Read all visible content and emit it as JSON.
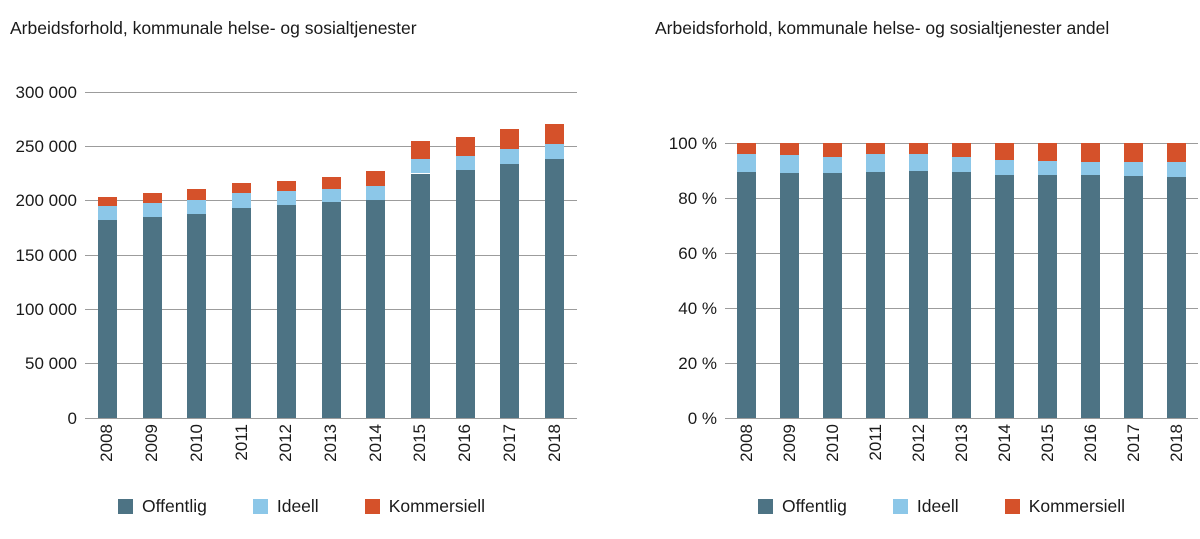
{
  "colors": {
    "background": "#ffffff",
    "text": "#1a1a1a",
    "gridline": "#9c9c9c",
    "offentlig": "#4d7384",
    "ideell": "#8cc7e8",
    "kommersiell": "#d5512a"
  },
  "chart_data": [
    {
      "type": "bar",
      "stacked": true,
      "title": "Arbeidsforhold, kommunale helse- og sosialtjenester",
      "categories": [
        "2008",
        "2009",
        "2010",
        "2011",
        "2012",
        "2013",
        "2014",
        "2015",
        "2016",
        "2017",
        "2018"
      ],
      "series": [
        {
          "name": "Offentlig",
          "color": "#4d7384",
          "values": [
            182000,
            185000,
            188000,
            193000,
            196000,
            198500,
            201000,
            225000,
            228000,
            234000,
            238000
          ]
        },
        {
          "name": "Ideell",
          "color": "#8cc7e8",
          "values": [
            13500,
            13000,
            12500,
            14000,
            13000,
            12500,
            12500,
            13000,
            13000,
            13500,
            14000
          ]
        },
        {
          "name": "Kommersiell",
          "color": "#d5512a",
          "values": [
            8000,
            9500,
            10500,
            9000,
            9000,
            11000,
            13500,
            17000,
            17500,
            18500,
            19000
          ]
        }
      ],
      "xlabel": "",
      "ylabel": "",
      "ylim": [
        0,
        300000
      ],
      "yticks": [
        {
          "value": 0,
          "label": "0"
        },
        {
          "value": 50000,
          "label": "50 000"
        },
        {
          "value": 100000,
          "label": "100 000"
        },
        {
          "value": 150000,
          "label": "150 000"
        },
        {
          "value": 200000,
          "label": "200 000"
        },
        {
          "value": 250000,
          "label": "250 000"
        },
        {
          "value": 300000,
          "label": "300 000"
        }
      ],
      "grid": true,
      "legend_position": "bottom",
      "x_label_rotation": -90
    },
    {
      "type": "bar",
      "stacked": true,
      "title": "Arbeidsforhold, kommunale helse- og sosialtjenester andel",
      "categories": [
        "2008",
        "2009",
        "2010",
        "2011",
        "2012",
        "2013",
        "2014",
        "2015",
        "2016",
        "2017",
        "2018"
      ],
      "series": [
        {
          "name": "Offentlig",
          "color": "#4d7384",
          "values": [
            89.4,
            89.2,
            89.1,
            89.4,
            89.9,
            89.4,
            88.5,
            88.2,
            88.2,
            88.0,
            87.8
          ]
        },
        {
          "name": "Ideell",
          "color": "#8cc7e8",
          "values": [
            6.6,
            6.3,
            5.9,
            6.5,
            6.0,
            5.6,
            5.5,
            5.1,
            5.0,
            5.1,
            5.2
          ]
        },
        {
          "name": "Kommersiell",
          "color": "#d5512a",
          "values": [
            4.0,
            4.5,
            5.0,
            4.1,
            4.1,
            5.0,
            6.0,
            6.7,
            6.8,
            6.9,
            7.0
          ]
        }
      ],
      "xlabel": "",
      "ylabel": "",
      "ylim": [
        0,
        100
      ],
      "yticks": [
        {
          "value": 0,
          "label": "0 %"
        },
        {
          "value": 20,
          "label": "20 %"
        },
        {
          "value": 40,
          "label": "40 %"
        },
        {
          "value": 60,
          "label": "60 %"
        },
        {
          "value": 80,
          "label": "80 %"
        },
        {
          "value": 100,
          "label": "100 %"
        }
      ],
      "grid": true,
      "legend_position": "bottom",
      "x_label_rotation": -90
    }
  ]
}
